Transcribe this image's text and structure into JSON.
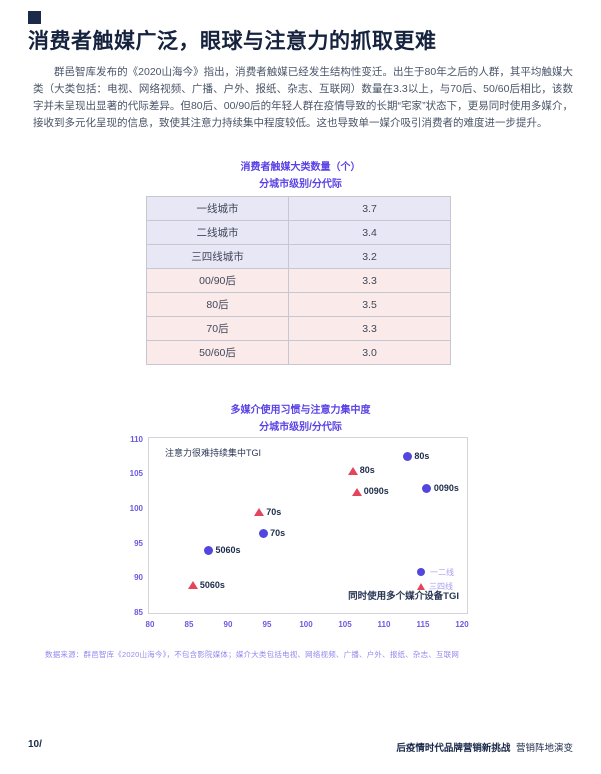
{
  "page": {
    "title": "消费者触媒广泛，眼球与注意力的抓取更难",
    "paragraph": "群邑智库发布的《2020山海今》指出，消费者触媒已经发生结构性变迁。出生于80年之后的人群，其平均触媒大类（大类包括：电视、网络视频、广播、户外、报纸、杂志、互联网）数量在3.3以上，与70后、50/60后相比，该数字并未呈现出显著的代际差异。但80后、00/90后的年轻人群在疫情导致的长期“宅家”状态下，更易同时使用多媒介，接收到多元化呈现的信息，致使其注意力持续集中程度较低。这也导致单一媒介吸引消费者的难度进一步提升。",
    "footnote": "数据来源：群邑智库《2020山海今》，不包含影院媒体；媒介大类包括电视、网络视频、广播、户外、报纸、杂志、互联网",
    "footer_left": "10/",
    "footer_right_bold": "后疫情时代品牌营销新挑战",
    "footer_right_regular": "营销阵地演变"
  },
  "table": {
    "title_line1": "消费者触媒大类数量（个）",
    "title_line2": "分城市级别/分代际",
    "rows": [
      {
        "label": "一线城市",
        "value": "3.7",
        "group": "city"
      },
      {
        "label": "二线城市",
        "value": "3.4",
        "group": "city"
      },
      {
        "label": "三四线城市",
        "value": "3.2",
        "group": "city"
      },
      {
        "label": "00/90后",
        "value": "3.3",
        "group": "generation"
      },
      {
        "label": "80后",
        "value": "3.5",
        "group": "generation"
      },
      {
        "label": "70后",
        "value": "3.3",
        "group": "generation"
      },
      {
        "label": "50/60后",
        "value": "3.0",
        "group": "generation"
      }
    ]
  },
  "chart_data": {
    "type": "scatter",
    "title_line1": "多媒介使用习惯与注意力集中度",
    "title_line2": "分城市级别/分代际",
    "ylabel_inplot": "注意力很难持续集中TGI",
    "xlabel_inplot": "同时使用多个媒介设备TGI",
    "xlim": [
      80,
      120
    ],
    "ylim": [
      85,
      110
    ],
    "x_ticks": [
      80,
      85,
      90,
      95,
      100,
      105,
      110,
      115,
      120
    ],
    "y_ticks": [
      110,
      105,
      100,
      95,
      90,
      85
    ],
    "grid": false,
    "legend_position": "inside-right",
    "series": [
      {
        "name": "一二线",
        "marker": "circle",
        "color": "#5246dd",
        "points": [
          {
            "label": "5060s",
            "x": 87.5,
            "y": 94
          },
          {
            "label": "70s",
            "x": 94.5,
            "y": 96.5
          },
          {
            "label": "80s",
            "x": 113,
            "y": 107.5
          },
          {
            "label": "0090s",
            "x": 115.5,
            "y": 103
          }
        ]
      },
      {
        "name": "三四线",
        "marker": "triangle",
        "color": "#e2455c",
        "points": [
          {
            "label": "5060s",
            "x": 85.5,
            "y": 89
          },
          {
            "label": "70s",
            "x": 94,
            "y": 99.5
          },
          {
            "label": "80s",
            "x": 106,
            "y": 105.5
          },
          {
            "label": "0090s",
            "x": 106.5,
            "y": 102.5
          }
        ]
      }
    ]
  },
  "colors": {
    "heading_navy": "#16233f",
    "body_slate": "#4a5468",
    "accent_purple": "#5a43e6",
    "tick_purple": "#6a5ae0",
    "note_lilac": "#9388f0",
    "legend_lilac": "#a89ef2",
    "marker_blue": "#5246dd",
    "marker_red": "#e2455c",
    "row_lavender": "#e8e7f6",
    "row_pink": "#fbeaea",
    "table_border": "#c7c7d2"
  }
}
